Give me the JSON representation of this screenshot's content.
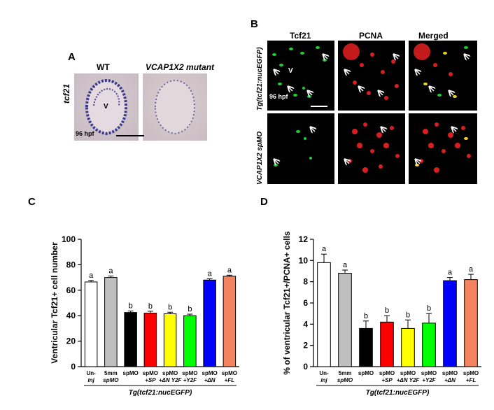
{
  "panels": {
    "A": {
      "label": "A",
      "col_wt": "WT",
      "col_mut": "VCAP1X2 mutant",
      "row_label": "tcf21",
      "v_label": "V",
      "stage": "96 hpf"
    },
    "B": {
      "label": "B",
      "cols": [
        "Tcf21",
        "PCNA",
        "Merged"
      ],
      "row1": "Tg(tcf21:nucEGFP)",
      "row2": "VCAP1X2 spMO",
      "v_label": "V",
      "stage": "96 hpf"
    },
    "C": {
      "label": "C"
    },
    "D": {
      "label": "D"
    }
  },
  "chart_data": [
    {
      "type": "bar",
      "ylabel": "Ventricular Tcf21+ cell number",
      "ylim": [
        0,
        100
      ],
      "yticks": [
        0,
        20,
        40,
        60,
        80,
        100
      ],
      "xlabel": "Tg(tcf21:nucEGFP)",
      "categories": [
        {
          "line1": "Un-",
          "line2": "inj"
        },
        {
          "line1": "5mm",
          "line2": "spMO"
        },
        {
          "line1": "spMO",
          "line2": ""
        },
        {
          "line1": "spMO",
          "line2": "+SP"
        },
        {
          "line1": "spMO",
          "line2": "+ΔN Y2F"
        },
        {
          "line1": "spMO",
          "line2": "+Y2F"
        },
        {
          "line1": "spMO",
          "line2": "+ΔN"
        },
        {
          "line1": "spMO",
          "line2": "+FL"
        }
      ],
      "values": [
        66.5,
        70,
        42.5,
        42,
        41.5,
        40,
        68,
        71
      ],
      "errors": [
        1.2,
        1.2,
        1.2,
        1.5,
        1.2,
        1.2,
        1.0,
        0.8
      ],
      "letters": [
        "a",
        "a",
        "b",
        "b",
        "b",
        "b",
        "a",
        "a"
      ],
      "colors": [
        "#ffffff",
        "#bfbfbf",
        "#000000",
        "#ff0000",
        "#ffff00",
        "#00ff00",
        "#0000ff",
        "#f4845f"
      ]
    },
    {
      "type": "bar",
      "ylabel": "% of ventricular Tcf21+/PCNA+ cells",
      "ylim": [
        0,
        12
      ],
      "yticks": [
        0,
        2,
        4,
        6,
        8,
        10,
        12
      ],
      "xlabel": "Tg(tcf21:nucEGFP)",
      "categories": [
        {
          "line1": "Un-",
          "line2": "inj"
        },
        {
          "line1": "5mm",
          "line2": "spMO"
        },
        {
          "line1": "spMO",
          "line2": ""
        },
        {
          "line1": "spMO",
          "line2": "+SP"
        },
        {
          "line1": "spMO",
          "line2": "+ΔN Y2F"
        },
        {
          "line1": "spMO",
          "line2": "+Y2F"
        },
        {
          "line1": "spMO",
          "line2": "+ΔN"
        },
        {
          "line1": "spMO",
          "line2": "+FL"
        }
      ],
      "values": [
        9.8,
        8.8,
        3.6,
        4.2,
        3.6,
        4.1,
        8.1,
        8.2
      ],
      "errors": [
        0.8,
        0.3,
        0.7,
        0.6,
        0.8,
        0.9,
        0.3,
        0.5
      ],
      "letters": [
        "a",
        "a",
        "b",
        "b",
        "b",
        "b",
        "a",
        "a"
      ],
      "colors": [
        "#ffffff",
        "#bfbfbf",
        "#000000",
        "#ff0000",
        "#ffff00",
        "#00ff00",
        "#0000ff",
        "#f4845f"
      ]
    }
  ]
}
